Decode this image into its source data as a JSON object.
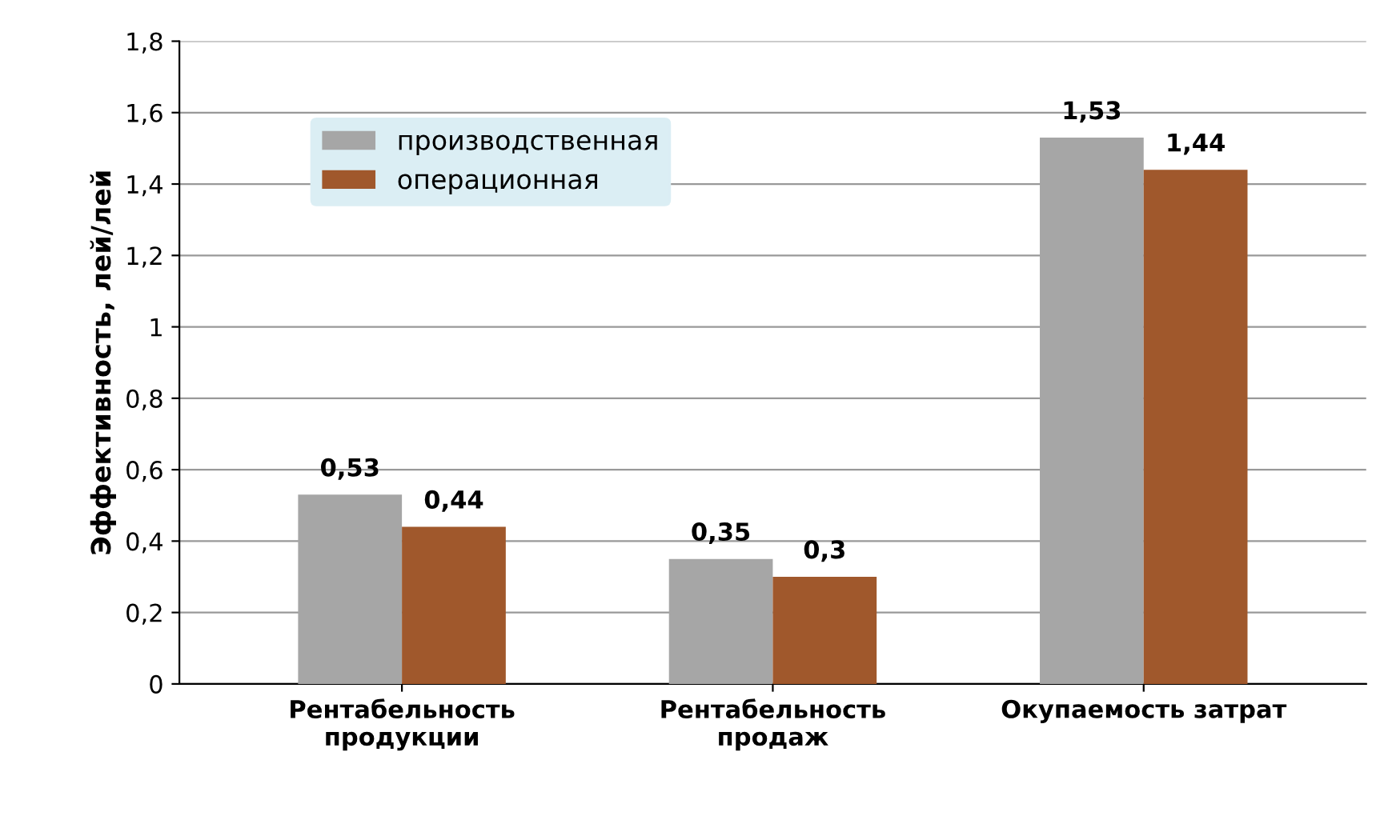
{
  "chart_data": {
    "type": "bar",
    "ylabel": "Эффективность, лей/лей",
    "categories": [
      "Рентабельность\nпродукции",
      "Рентабельность\nпродаж",
      "Окупаемость затрат"
    ],
    "series": [
      {
        "name": "производственная",
        "color": "#a6a6a6",
        "values": [
          0.53,
          0.35,
          1.53
        ],
        "value_labels": [
          "0,53",
          "0,35",
          "1,53"
        ]
      },
      {
        "name": "операционная",
        "color": "#a0582c",
        "values": [
          0.44,
          0.3,
          1.44
        ],
        "value_labels": [
          "0,44",
          "0,3",
          "1,44"
        ]
      }
    ],
    "ylim": [
      0,
      1.8
    ],
    "yticks": [
      0,
      {
        "value": 0.2,
        "label": "0,2"
      },
      {
        "value": 0.4,
        "label": "0,4"
      },
      {
        "value": 0.6,
        "label": "0,6"
      },
      {
        "value": 0.8,
        "label": "0,8"
      },
      1,
      {
        "value": 1.2,
        "label": "1,2"
      },
      {
        "value": 1.4,
        "label": "1,4"
      },
      {
        "value": 1.6,
        "label": "1,6"
      },
      {
        "value": 1.8,
        "label": "1,8"
      }
    ],
    "grid": "y",
    "legend": "top left"
  }
}
